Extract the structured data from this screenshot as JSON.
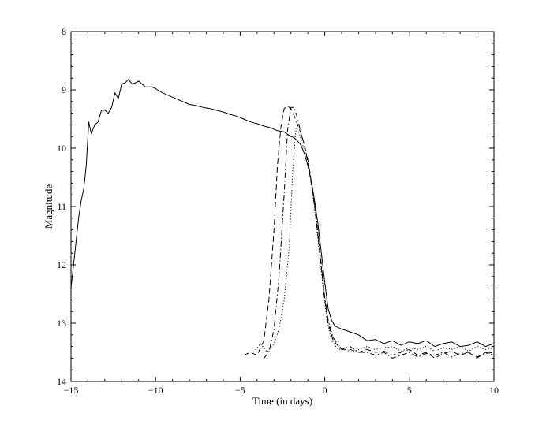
{
  "chart_data": {
    "type": "line",
    "xlabel": "Time (in days)",
    "ylabel": "Magnitude",
    "xlim": [
      -15,
      10
    ],
    "ylim": [
      8,
      14
    ],
    "y_inverted": true,
    "grid": false,
    "legend": "none",
    "xticks": [
      -15,
      -10,
      -5,
      0,
      5,
      10
    ],
    "xtick_labels": [
      "−15",
      "−10",
      "−5",
      "0",
      "5",
      "10"
    ],
    "yticks": [
      8,
      9,
      10,
      11,
      12,
      13,
      14
    ],
    "ytick_labels": [
      "8",
      "9",
      "10",
      "11",
      "12",
      "13",
      "14"
    ],
    "series": [
      {
        "style": "solid",
        "x": [
          -15.0,
          -14.85,
          -14.7,
          -14.55,
          -14.4,
          -14.25,
          -14.1,
          -13.95,
          -13.8,
          -13.6,
          -13.4,
          -13.2,
          -13.0,
          -12.8,
          -12.6,
          -12.4,
          -12.2,
          -12.0,
          -11.8,
          -11.6,
          -11.4,
          -11.2,
          -11.0,
          -10.8,
          -10.6,
          -10.4,
          -10.2,
          -10.0,
          -9.6,
          -9.2,
          -8.8,
          -8.4,
          -8.0,
          -7.6,
          -7.2,
          -6.8,
          -6.4,
          -6.0,
          -5.6,
          -5.2,
          -4.8,
          -4.4,
          -4.0,
          -3.6,
          -3.2,
          -2.8,
          -2.4,
          -2.0,
          -1.8,
          -1.6,
          -1.4,
          -1.2,
          -1.0,
          -0.8,
          -0.6,
          -0.4,
          -0.2,
          0.0,
          0.2,
          0.4,
          0.6,
          1.0,
          1.5,
          2.0,
          2.5,
          3.0,
          3.5,
          4.0,
          4.5,
          5.0,
          5.5,
          6.0,
          6.5,
          7.0,
          7.5,
          8.0,
          8.5,
          9.0,
          9.5,
          10.0
        ],
        "y": [
          12.4,
          12.0,
          11.6,
          11.2,
          10.9,
          10.7,
          10.3,
          9.55,
          9.75,
          9.6,
          9.55,
          9.35,
          9.35,
          9.4,
          9.3,
          9.05,
          9.15,
          8.9,
          8.88,
          8.82,
          8.9,
          8.88,
          8.85,
          8.9,
          8.95,
          8.95,
          8.95,
          8.98,
          9.05,
          9.1,
          9.15,
          9.2,
          9.25,
          9.27,
          9.3,
          9.32,
          9.35,
          9.38,
          9.42,
          9.45,
          9.5,
          9.55,
          9.58,
          9.62,
          9.65,
          9.7,
          9.72,
          9.8,
          9.82,
          9.88,
          9.95,
          10.1,
          10.3,
          10.55,
          10.9,
          11.3,
          11.8,
          12.3,
          12.75,
          12.95,
          13.05,
          13.1,
          13.15,
          13.2,
          13.3,
          13.28,
          13.35,
          13.3,
          13.38,
          13.32,
          13.35,
          13.3,
          13.4,
          13.35,
          13.32,
          13.4,
          13.38,
          13.32,
          13.4,
          13.35
        ]
      },
      {
        "style": "dashed",
        "x": [
          -4.8,
          -4.4,
          -4.0,
          -3.6,
          -3.3,
          -3.0,
          -2.8,
          -2.6,
          -2.4,
          -2.2,
          -2.0,
          -1.8,
          -1.6,
          -1.4,
          -1.2,
          -1.0,
          -0.8,
          -0.6,
          -0.4,
          -0.2,
          0.0,
          0.2,
          0.5,
          1.0,
          1.5,
          2.0,
          2.5,
          3.0,
          3.5,
          4.0,
          4.5,
          5.0,
          5.5,
          6.0,
          6.5,
          7.0,
          7.5,
          8.0,
          8.5,
          9.0,
          9.5,
          10.0
        ],
        "y": [
          13.55,
          13.5,
          13.55,
          13.3,
          12.6,
          11.4,
          10.3,
          9.65,
          9.32,
          9.28,
          9.32,
          9.45,
          9.6,
          9.75,
          9.95,
          10.25,
          10.6,
          11.0,
          11.5,
          12.05,
          12.6,
          13.0,
          13.3,
          13.45,
          13.45,
          13.5,
          13.45,
          13.5,
          13.48,
          13.55,
          13.5,
          13.45,
          13.55,
          13.5,
          13.6,
          13.52,
          13.48,
          13.55,
          13.5,
          13.6,
          13.5,
          13.55
        ]
      },
      {
        "style": "dashdot",
        "x": [
          -3.6,
          -3.3,
          -3.0,
          -2.7,
          -2.4,
          -2.2,
          -2.0,
          -1.8,
          -1.6,
          -1.4,
          -1.2,
          -1.0,
          -0.8,
          -0.6,
          -0.4,
          -0.2,
          0.0,
          0.2,
          0.5,
          1.0,
          1.5,
          2.0,
          2.5,
          3.0,
          3.5,
          4.0,
          4.5,
          5.0,
          5.5,
          6.0,
          6.5,
          7.0,
          7.5,
          8.0,
          8.5,
          9.0,
          9.5,
          10.0
        ],
        "y": [
          13.6,
          13.5,
          13.1,
          12.2,
          10.8,
          9.7,
          9.3,
          9.3,
          9.5,
          9.75,
          9.95,
          10.2,
          10.55,
          10.95,
          11.45,
          12.0,
          12.55,
          12.95,
          13.25,
          13.45,
          13.4,
          13.5,
          13.5,
          13.55,
          13.5,
          13.6,
          13.55,
          13.5,
          13.58,
          13.52,
          13.55,
          13.5,
          13.58,
          13.52,
          13.5,
          13.58,
          13.52,
          13.5
        ]
      },
      {
        "style": "dotted",
        "x": [
          -4.2,
          -3.8,
          -3.4,
          -3.0,
          -2.7,
          -2.4,
          -2.1,
          -1.9,
          -1.7,
          -1.5,
          -1.3,
          -1.1,
          -0.9,
          -0.7,
          -0.5,
          -0.3,
          -0.1,
          0.1,
          0.4,
          0.8,
          1.2,
          1.6,
          2.0,
          2.5,
          3.0,
          3.5,
          4.0,
          4.5,
          5.0,
          5.5,
          6.0,
          6.5,
          7.0,
          7.5,
          8.0,
          8.5,
          9.0,
          9.5,
          10.0
        ],
        "y": [
          13.5,
          13.35,
          13.5,
          13.35,
          13.1,
          12.6,
          11.7,
          10.4,
          9.65,
          9.75,
          9.95,
          10.1,
          10.4,
          10.8,
          11.3,
          11.85,
          12.4,
          12.9,
          13.3,
          13.45,
          13.45,
          13.5,
          13.45,
          13.4,
          13.45,
          13.42,
          13.4,
          13.48,
          13.42,
          13.45,
          13.4,
          13.48,
          13.42,
          13.45,
          13.4,
          13.48,
          13.4,
          13.45,
          13.42
        ]
      }
    ]
  },
  "colors": {
    "line": "#000000",
    "background": "#ffffff"
  }
}
